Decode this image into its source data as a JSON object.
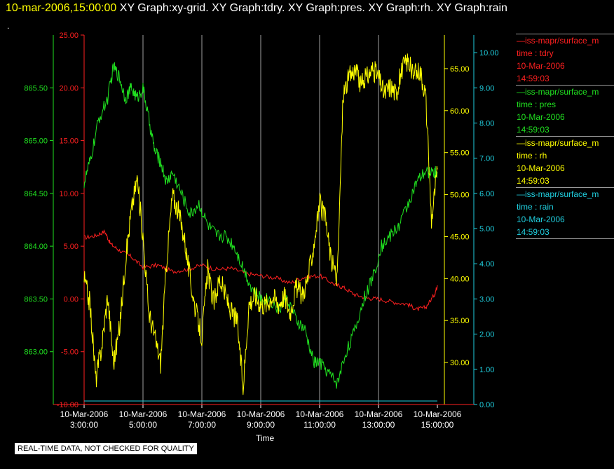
{
  "header": {
    "timestamp": "10-mar-2006,15:00:00",
    "graphs": "XY Graph:xy-grid.  XY Graph:tdry.  XY Graph:pres.  XY Graph:rh.  XY Graph:rain"
  },
  "dot": ".",
  "notice": "REAL-TIME DATA, NOT CHECKED FOR QUALITY",
  "legend": [
    {
      "name": "iss-mapr/surface_m",
      "var": "time : tdry",
      "date": "10-Mar-2006",
      "time": "14:59:03",
      "color": "#ff2020"
    },
    {
      "name": "iss-mapr/surface_m",
      "var": "time : pres",
      "date": "10-Mar-2006",
      "time": "14:59:03",
      "color": "#20e020"
    },
    {
      "name": "iss-mapr/surface_m",
      "var": "time : rh",
      "date": "10-Mar-2006",
      "time": "14:59:03",
      "color": "#ffff00"
    },
    {
      "name": "iss-mapr/surface_m",
      "var": "time : rain",
      "date": "10-Mar-2006",
      "time": "14:59:03",
      "color": "#20d0e0"
    }
  ],
  "chart_data": {
    "type": "line",
    "xlabel": "Time",
    "x_ticks": [
      {
        "date": "10-Mar-2006",
        "time": "3:00:00"
      },
      {
        "date": "10-Mar-2006",
        "time": "5:00:00"
      },
      {
        "date": "10-Mar-2006",
        "time": "7:00:00"
      },
      {
        "date": "10-Mar-2006",
        "time": "9:00:00"
      },
      {
        "date": "10-Mar-2006",
        "time": "11:00:00"
      },
      {
        "date": "10-Mar-2006",
        "time": "13:00:00"
      },
      {
        "date": "10-Mar-2006",
        "time": "15:00:00"
      }
    ],
    "x_range_hours": [
      3.0,
      15.0
    ],
    "grid": "vertical",
    "axes": [
      {
        "id": "pres",
        "side": "left",
        "color": "#20e020",
        "range": [
          862.5,
          866.0
        ],
        "ticks": [
          "863.00",
          "863.50",
          "864.00",
          "864.50",
          "865.00",
          "865.50"
        ],
        "tick_values": [
          863.0,
          863.5,
          864.0,
          864.5,
          865.0,
          865.5
        ]
      },
      {
        "id": "tdry",
        "side": "left",
        "color": "#ff2020",
        "range": [
          -10,
          25
        ],
        "ticks": [
          "-10.00",
          "-5.00",
          "0.00",
          "5.00",
          "10.00",
          "15.00",
          "20.00",
          "25.00"
        ],
        "tick_values": [
          -10,
          -5,
          0,
          5,
          10,
          15,
          20,
          25
        ]
      },
      {
        "id": "rh",
        "side": "right",
        "color": "#ffff00",
        "range": [
          25,
          69
        ],
        "ticks": [
          "30.00",
          "35.00",
          "40.00",
          "45.00",
          "50.00",
          "55.00",
          "60.00",
          "65.00"
        ],
        "tick_values": [
          30,
          35,
          40,
          45,
          50,
          55,
          60,
          65
        ]
      },
      {
        "id": "rain",
        "side": "right",
        "color": "#20d0e0",
        "range": [
          0,
          10.5
        ],
        "ticks": [
          "0.00",
          "1.00",
          "2.00",
          "3.00",
          "4.00",
          "5.00",
          "6.00",
          "7.00",
          "8.00",
          "9.00",
          "10.00"
        ],
        "tick_values": [
          0,
          1,
          2,
          3,
          4,
          5,
          6,
          7,
          8,
          9,
          10
        ]
      }
    ],
    "series": [
      {
        "axis": "tdry",
        "color": "#ff2020",
        "x": [
          3.0,
          3.4,
          3.7,
          3.9,
          4.2,
          4.6,
          5.0,
          5.5,
          6.0,
          6.5,
          7.0,
          7.5,
          8.0,
          8.5,
          9.0,
          9.5,
          10.0,
          10.5,
          11.0,
          11.5,
          11.8,
          12.2,
          12.6,
          13.0,
          13.5,
          14.0,
          14.3,
          14.6,
          14.9,
          15.0
        ],
        "y": [
          5.8,
          6.0,
          6.4,
          5.2,
          4.6,
          4.0,
          3.0,
          3.2,
          2.6,
          2.8,
          3.2,
          2.8,
          2.9,
          2.4,
          2.2,
          2.0,
          1.5,
          2.1,
          2.2,
          1.4,
          1.1,
          0.4,
          0.1,
          0.0,
          -0.3,
          -0.5,
          -1.0,
          -0.8,
          0.4,
          1.3
        ]
      },
      {
        "axis": "pres",
        "color": "#20e020",
        "x": [
          3.0,
          3.2,
          3.5,
          3.8,
          4.0,
          4.2,
          4.4,
          4.6,
          4.8,
          5.0,
          5.2,
          5.4,
          5.6,
          5.8,
          6.0,
          6.3,
          6.6,
          6.9,
          7.2,
          7.5,
          7.8,
          8.1,
          8.4,
          8.7,
          9.0,
          9.3,
          9.6,
          9.9,
          10.2,
          10.5,
          10.8,
          11.0,
          11.3,
          11.6,
          11.9,
          12.2,
          12.5,
          12.8,
          13.1,
          13.4,
          13.7,
          14.0,
          14.3,
          14.6,
          14.9,
          15.0
        ],
        "y": [
          864.6,
          864.8,
          865.2,
          865.4,
          865.7,
          865.6,
          865.4,
          865.5,
          865.4,
          865.5,
          865.2,
          864.9,
          864.8,
          864.6,
          864.7,
          864.5,
          864.3,
          864.4,
          864.2,
          864.1,
          864.1,
          864.0,
          863.8,
          863.6,
          863.5,
          863.5,
          863.4,
          863.5,
          863.3,
          863.2,
          862.9,
          862.9,
          862.8,
          862.7,
          863.0,
          863.2,
          863.5,
          863.7,
          864.0,
          864.1,
          864.2,
          864.4,
          864.6,
          864.7,
          864.7,
          864.7
        ]
      },
      {
        "axis": "rh",
        "color": "#ffff00",
        "x": [
          3.0,
          3.2,
          3.4,
          3.6,
          3.8,
          4.0,
          4.2,
          4.4,
          4.6,
          4.8,
          5.0,
          5.2,
          5.4,
          5.6,
          5.8,
          6.0,
          6.2,
          6.4,
          6.6,
          6.8,
          7.0,
          7.2,
          7.4,
          7.6,
          7.8,
          8.0,
          8.2,
          8.4,
          8.6,
          8.8,
          9.0,
          9.2,
          9.4,
          9.6,
          9.8,
          10.0,
          10.2,
          10.4,
          10.6,
          10.8,
          11.0,
          11.2,
          11.4,
          11.6,
          11.8,
          12.0,
          12.2,
          12.4,
          12.6,
          12.8,
          13.0,
          13.2,
          13.4,
          13.6,
          13.8,
          14.0,
          14.2,
          14.4,
          14.6,
          14.8,
          15.0
        ],
        "y": [
          40,
          37,
          28,
          32,
          38,
          30,
          34,
          42,
          48,
          52,
          45,
          36,
          33,
          30,
          42,
          50,
          48,
          45,
          40,
          36,
          33,
          41,
          37,
          40,
          38,
          36,
          35,
          27,
          37,
          38,
          37,
          37,
          38,
          37,
          38,
          36,
          39,
          38,
          40,
          44,
          49,
          47,
          42,
          40,
          62,
          64,
          65,
          63,
          64,
          65,
          64,
          62,
          63,
          62,
          65,
          66,
          64,
          65,
          62,
          47,
          53
        ]
      },
      {
        "axis": "rain",
        "color": "#20d0e0",
        "x": [
          3.0,
          15.0
        ],
        "y": [
          0.1,
          0.1
        ]
      }
    ]
  }
}
